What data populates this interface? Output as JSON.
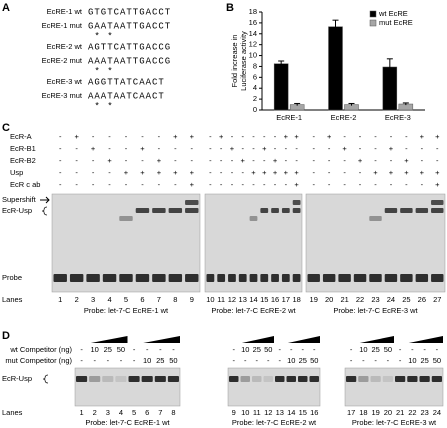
{
  "panel_a": {
    "label": "A",
    "rows": [
      {
        "name": "EcRE-1 wt",
        "seq": "GTGTCATTGACCT"
      },
      {
        "name": "EcRE-1 mut",
        "seq": "GAATAATTGACCT",
        "stars": "* *"
      },
      {
        "name": "EcRE-2 wt",
        "seq": "AGTTCATTGACCG"
      },
      {
        "name": "EcRE-2 mut",
        "seq": "AAATAATTGACCG",
        "stars": "* *"
      },
      {
        "name": "EcRE-3 wt",
        "seq": "AGGTTATCAACT"
      },
      {
        "name": "EcRE-3 mut",
        "seq": "AAATAATCAACT",
        "stars": "* *"
      }
    ]
  },
  "chart_label": "B",
  "chart_data": {
    "type": "bar",
    "ylabel": [
      "Fold increase in",
      "Luciferase activity"
    ],
    "categories": [
      "EcRE-1",
      "EcRE-2",
      "EcRE-3"
    ],
    "series": [
      {
        "name": "wt EcRE",
        "color": "#000000",
        "values": [
          8.5,
          15.3,
          7.9
        ],
        "errors": [
          0.5,
          1.2,
          1.5
        ]
      },
      {
        "name": "mut EcRE",
        "color": "#a6a6a6",
        "values": [
          1.0,
          1.0,
          1.1
        ],
        "errors": [
          0.2,
          0.2,
          0.2
        ]
      }
    ],
    "ylim": [
      0,
      18
    ],
    "yticks": [
      0,
      2,
      4,
      6,
      8,
      10,
      12,
      14,
      16,
      18
    ],
    "legend": "top-right"
  },
  "panel_c": {
    "label": "C",
    "row_labels": [
      "EcR-A",
      "EcR-B1",
      "EcR-B2",
      "Usp",
      "EcR c ab"
    ],
    "signs": [
      [
        "-",
        "+",
        "-",
        "-",
        "-",
        "-",
        "-",
        "+",
        "+"
      ],
      [
        "-",
        "-",
        "+",
        "-",
        "-",
        "+",
        "-",
        "-",
        "-"
      ],
      [
        "-",
        "-",
        "-",
        "+",
        "-",
        "-",
        "+",
        "-",
        "-"
      ],
      [
        "-",
        "-",
        "-",
        "-",
        "+",
        "+",
        "+",
        "+",
        "+"
      ],
      [
        "-",
        "-",
        "-",
        "-",
        "-",
        "-",
        "-",
        "-",
        "+"
      ]
    ],
    "supershift": "Supershift",
    "complex": "EcR-Usp",
    "probe": "Probe",
    "lanes": "Lanes",
    "gels": [
      {
        "lanes": [
          1,
          2,
          3,
          4,
          5,
          6,
          7,
          8,
          9
        ],
        "caption": "Probe: let-7-C EcRE-1 wt"
      },
      {
        "lanes": [
          10,
          11,
          12,
          13,
          14,
          15,
          16,
          17,
          18
        ],
        "caption": "Probe: let-7-C EcRE-2 wt"
      },
      {
        "lanes": [
          19,
          20,
          21,
          22,
          23,
          24,
          25,
          26,
          27
        ],
        "caption": "Probe: let-7-C EcRE-3 wt"
      }
    ]
  },
  "panel_d": {
    "label": "D",
    "row_labels": [
      "wt Competitor (ng)",
      "mut Competitor (ng)"
    ],
    "amounts": [
      [
        "-",
        "10",
        "25",
        "50",
        "-",
        "-",
        "-",
        "-"
      ],
      [
        "-",
        "-",
        "-",
        "-",
        "-",
        "10",
        "25",
        "50"
      ]
    ],
    "complex": "EcR-Usp",
    "lanes": "Lanes",
    "gels": [
      {
        "lanes": [
          1,
          2,
          3,
          4,
          5,
          6,
          7,
          8
        ],
        "caption": "Probe: let-7-C EcRE-1 wt"
      },
      {
        "lanes": [
          9,
          10,
          11,
          12,
          13,
          14,
          15,
          16
        ],
        "caption": "Probe: let-7-C EcRE-2 wt"
      },
      {
        "lanes": [
          17,
          18,
          19,
          20,
          21,
          22,
          23,
          24
        ],
        "caption": "Probe: let-7-C EcRE-3 wt"
      }
    ]
  }
}
